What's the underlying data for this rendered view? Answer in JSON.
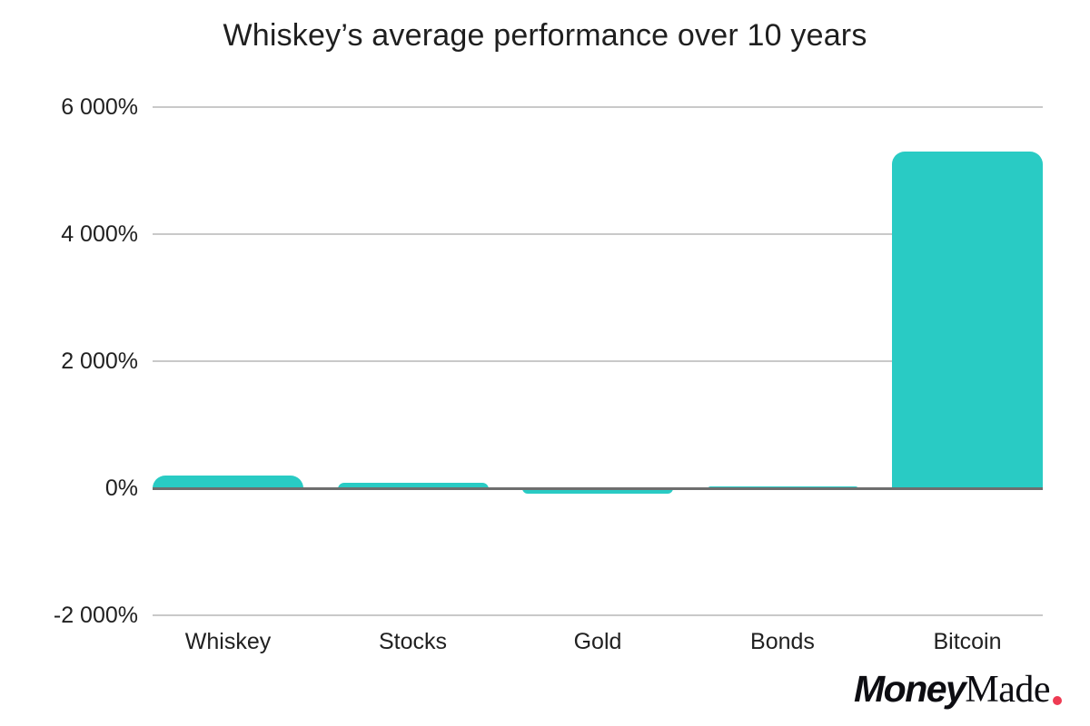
{
  "title": "Whiskey’s average performance over 10 years",
  "chart_data": {
    "type": "bar",
    "title": "Whiskey’s average performance over 10 years",
    "categories": [
      "Whiskey",
      "Stocks",
      "Gold",
      "Bonds",
      "Bitcoin"
    ],
    "values": [
      200,
      85,
      -60,
      30,
      5300
    ],
    "unit": "%",
    "ylim": [
      -2000,
      6000
    ],
    "yticks": [
      {
        "value": 6000,
        "label": "6 000%"
      },
      {
        "value": 4000,
        "label": "4 000%"
      },
      {
        "value": 2000,
        "label": "2 000%"
      },
      {
        "value": 0,
        "label": "0%"
      },
      {
        "value": -2000,
        "label": "-2 000%"
      }
    ],
    "grid": "horizontal",
    "legend": "none",
    "bar_color": "#29cbc4",
    "gridline_color": "#c9c9c9",
    "zero_line_color": "#6e6e6e",
    "label_color": "#212121"
  },
  "logo": {
    "bold_part": "Money",
    "serif_part": "Made",
    "dot_color": "#ee3b53"
  }
}
